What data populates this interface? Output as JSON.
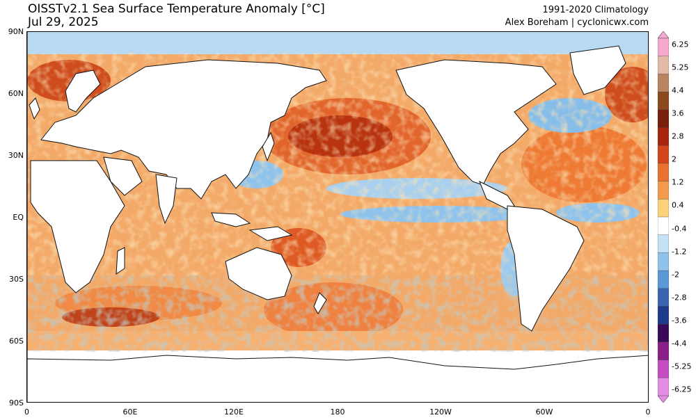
{
  "header": {
    "title": "OISSTv2.1 Sea Surface Temperature Anomaly [°C]",
    "date": "Jul 29, 2025",
    "climatology": "1991-2020 Climatology",
    "credit": "Alex Boreham | cyclonicwx.com"
  },
  "map": {
    "lat_labels": [
      "90N",
      "60N",
      "30N",
      "EQ",
      "30S",
      "60S",
      "90S"
    ],
    "lon_labels": [
      "0",
      "60E",
      "120E",
      "180",
      "120W",
      "60W",
      "0"
    ],
    "colors": {
      "land": "#ffffff",
      "coast": "#111111",
      "warm_strong": "#b8250f",
      "warm": "#e8662a",
      "warm_light": "#f6a35a",
      "cool": "#74aee0",
      "cool_light": "#b7d8f2",
      "cool_strong": "#3b6fc0"
    }
  },
  "colorbar": {
    "labels": [
      "6.25",
      "5.25",
      "4.4",
      "3.6",
      "2.8",
      "2",
      "1.2",
      "0.4",
      "-0.4",
      "-1.2",
      "-2",
      "-2.8",
      "-3.6",
      "-4.4",
      "-5.25",
      "-6.25"
    ],
    "colors": [
      "#f6a8cf",
      "#e4b8a6",
      "#b98560",
      "#8c4a1c",
      "#7a1f0c",
      "#a8240f",
      "#d4461a",
      "#e97230",
      "#f59a4c",
      "#fbd27a",
      "#ffffff",
      "#c5e1f5",
      "#8fc3ec",
      "#5a98d8",
      "#3c64b4",
      "#1e3a8a",
      "#3a0a5a",
      "#8a1f8a",
      "#c44bc4",
      "#e48be4"
    ]
  }
}
